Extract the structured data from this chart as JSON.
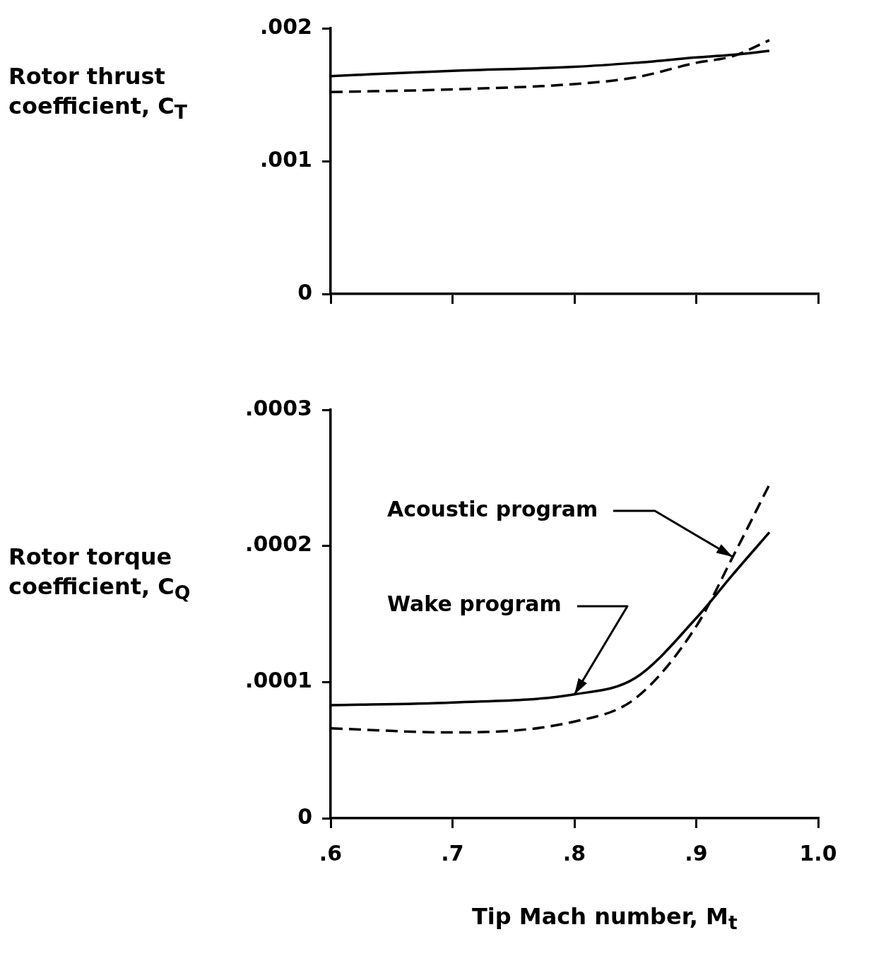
{
  "chart_data": [
    {
      "type": "line",
      "ylabel": "Rotor thrust coefficient, C$_{T}$",
      "x": [
        0.6,
        0.7,
        0.8,
        0.85,
        0.9,
        0.93,
        0.96
      ],
      "series": [
        {
          "color": "#000000",
          "line_style": "solid",
          "values": [
            0.00164,
            0.00168,
            0.00171,
            0.00174,
            0.00178,
            0.0018,
            0.00183
          ]
        },
        {
          "color": "#000000",
          "line_style": "dashed",
          "values": [
            0.00152,
            0.00154,
            0.00158,
            0.00163,
            0.00174,
            0.00179,
            0.00191
          ]
        }
      ],
      "xlim": [
        0.6,
        1.0
      ],
      "xticks": [
        {
          "value": 0.6,
          "label": null
        },
        {
          "value": 0.7,
          "label": null
        },
        {
          "value": 0.8,
          "label": null
        },
        {
          "value": 0.9,
          "label": null
        },
        {
          "value": 1.0,
          "label": null
        }
      ],
      "ylim": [
        0,
        0.002
      ],
      "yticks": [
        {
          "value": 0,
          "label": "0"
        },
        {
          "value": 0.001,
          "label": ".001"
        },
        {
          "value": 0.002,
          "label": ".002"
        }
      ],
      "tick_labels": "y",
      "grid": false,
      "legend": false,
      "marker": "none"
    },
    {
      "type": "line",
      "ylabel": "Rotor torque coefficient, C$_{Q}$",
      "xlabel": "Tip Mach number, M$_{t}$",
      "x": [
        0.6,
        0.7,
        0.8,
        0.85,
        0.9,
        0.93,
        0.96
      ],
      "series": [
        {
          "color": "#000000",
          "line_style": "solid",
          "values": [
            8.3e-05,
            8.5e-05,
            9.1e-05,
            0.000103,
            0.000147,
            0.000179,
            0.00021
          ]
        },
        {
          "color": "#000000",
          "line_style": "dashed",
          "values": [
            6.6e-05,
            6.3e-05,
            7.1e-05,
            8.8e-05,
            0.000141,
            0.000192,
            0.000245
          ]
        }
      ],
      "annotations": [
        {
          "text": "Acoustic program",
          "x": 0.93,
          "y": 0.000192
        },
        {
          "text": "Wake program",
          "x": 0.8,
          "y": 9.1e-05
        }
      ],
      "xlim": [
        0.6,
        1.0
      ],
      "xticks": [
        {
          "value": 0.6,
          "label": ".6"
        },
        {
          "value": 0.7,
          "label": ".7"
        },
        {
          "value": 0.8,
          "label": ".8"
        },
        {
          "value": 0.9,
          "label": ".9"
        },
        {
          "value": 1.0,
          "label": "1.0"
        }
      ],
      "ylim": [
        0,
        0.0003
      ],
      "yticks": [
        {
          "value": 0,
          "label": "0"
        },
        {
          "value": 0.0001,
          "label": ".0001"
        },
        {
          "value": 0.0002,
          "label": ".0002"
        },
        {
          "value": 0.0003,
          "label": ".0003"
        }
      ],
      "grid": false,
      "legend": false,
      "marker": "none"
    }
  ]
}
